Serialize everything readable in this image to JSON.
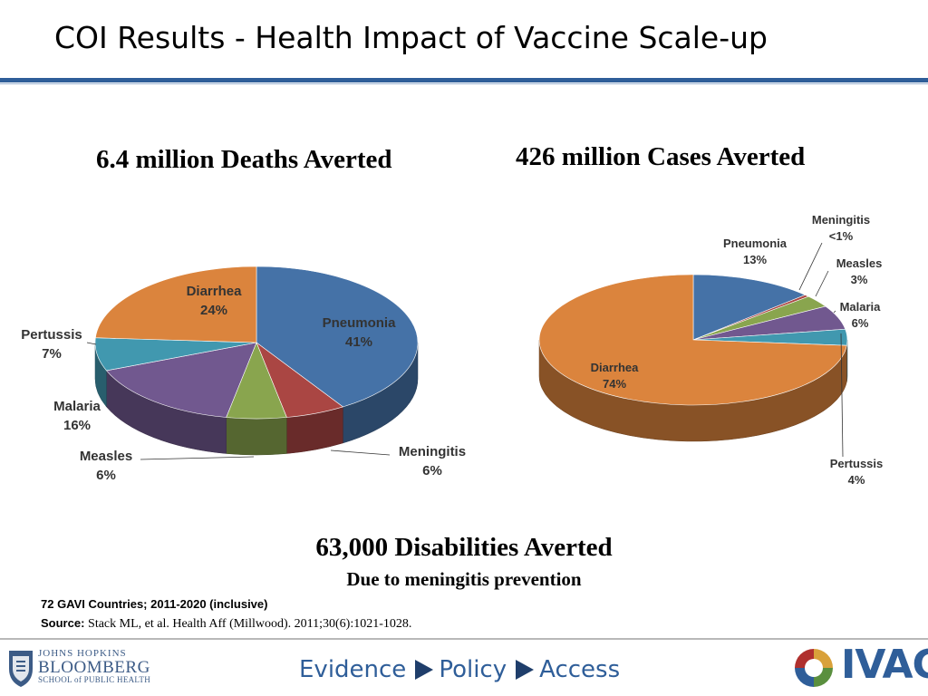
{
  "slide": {
    "title": "COI Results - Health Impact of Vaccine Scale-up",
    "disabilities_title": "63,000 Disabilities Averted",
    "disabilities_subtitle": "Due to meningitis prevention",
    "note": "72 GAVI Countries; 2011-2020 (inclusive)",
    "source_label": "Source:",
    "source_text": "Stack ML, et al. Health Aff (Millwood). 2011;30(6):1021-1028."
  },
  "footer": {
    "logo_left": {
      "line1": "JOHNS HOPKINS",
      "line2": "BLOOMBERG",
      "line3": "SCHOOL of PUBLIC HEALTH"
    },
    "tagline": [
      "Evidence",
      "Policy",
      "Access"
    ],
    "logo_right": "IVAC"
  },
  "chart_data": [
    {
      "type": "pie",
      "title": "6.4 million Deaths Averted",
      "slices": [
        {
          "label": "Pneumonia",
          "value": 41,
          "display": "41%",
          "color": "#4572a7"
        },
        {
          "label": "Meningitis",
          "value": 6,
          "display": "6%",
          "color": "#aa4643"
        },
        {
          "label": "Measles",
          "value": 6,
          "display": "6%",
          "color": "#89a54e"
        },
        {
          "label": "Malaria",
          "value": 16,
          "display": "16%",
          "color": "#71588f"
        },
        {
          "label": "Pertussis",
          "value": 7,
          "display": "7%",
          "color": "#4198af"
        },
        {
          "label": "Diarrhea",
          "value": 24,
          "display": "24%",
          "color": "#db843d"
        }
      ]
    },
    {
      "type": "pie",
      "title": "426 million Cases Averted",
      "slices": [
        {
          "label": "Pneumonia",
          "value": 13,
          "display": "13%",
          "color": "#4572a7"
        },
        {
          "label": "Meningitis",
          "value": 0.5,
          "display": "<1%",
          "color": "#aa4643"
        },
        {
          "label": "Measles",
          "value": 3,
          "display": "3%",
          "color": "#89a54e"
        },
        {
          "label": "Malaria",
          "value": 6,
          "display": "6%",
          "color": "#71588f"
        },
        {
          "label": "Pertussis",
          "value": 4,
          "display": "4%",
          "color": "#4198af"
        },
        {
          "label": "Diarrhea",
          "value": 74,
          "display": "74%",
          "color": "#db843d"
        }
      ]
    }
  ]
}
